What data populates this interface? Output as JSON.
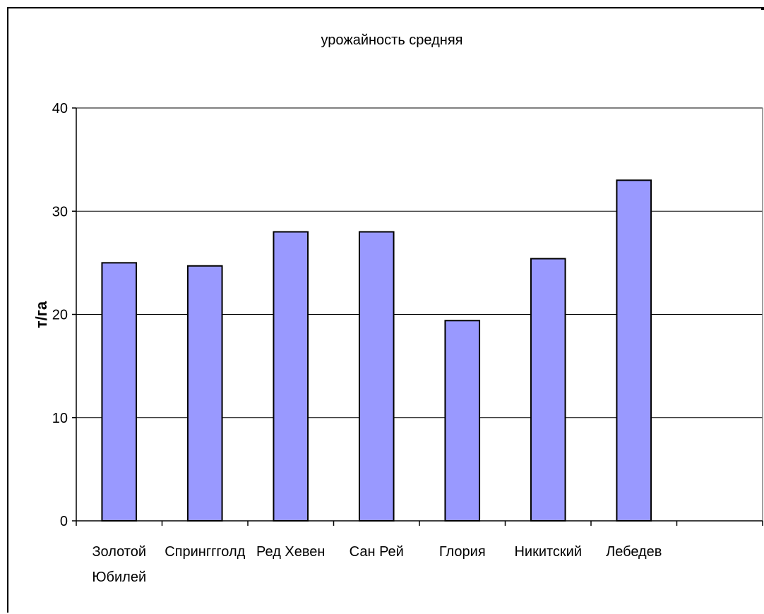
{
  "chart_data": {
    "type": "bar",
    "title": "урожайность средняя",
    "xlabel": "",
    "ylabel": "т/га",
    "ylim": [
      0,
      40
    ],
    "yticks": [
      0,
      10,
      20,
      30,
      40
    ],
    "grid": true,
    "legend": "none",
    "categories": [
      "Золотой Юбилей",
      "Спринггголд",
      "Ред Хевен",
      "Сан Рей",
      "Глория",
      "Никитский",
      "Лебедев",
      ""
    ],
    "category_lines": [
      [
        "Золотой",
        "Юбилей"
      ],
      [
        "Спринггголд"
      ],
      [
        "Ред Хевен"
      ],
      [
        "Сан Рей"
      ],
      [
        "Глория"
      ],
      [
        "Никитский"
      ],
      [
        "Лебедев"
      ],
      [
        ""
      ]
    ],
    "values": [
      25,
      24.7,
      28,
      28,
      19.4,
      25.4,
      33,
      null
    ],
    "colors": {
      "bar_fill": "#9999ff",
      "bar_stroke": "#000000",
      "grid": "#000000"
    }
  }
}
